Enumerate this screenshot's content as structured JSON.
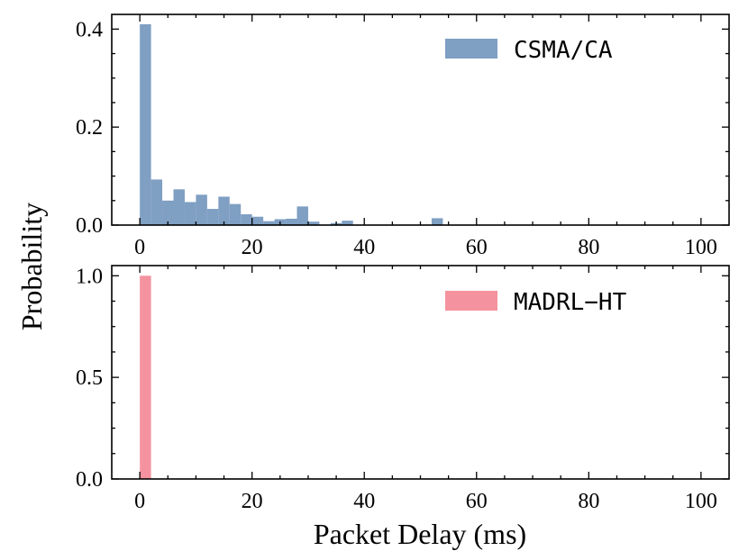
{
  "chart_data": {
    "type": "histogram",
    "shared_xlabel": "Packet Delay (ms)",
    "shared_ylabel": "Probability",
    "xlim": [
      -5,
      105
    ],
    "xticks": [
      0,
      20,
      40,
      60,
      80,
      100
    ],
    "bin_width": 2,
    "panels": [
      {
        "series_name": "CSMA/CA",
        "color": "#7f9fc3",
        "ylim": [
          0,
          0.43
        ],
        "yticks": [
          0.0,
          0.2,
          0.4
        ],
        "ytick_labels": [
          "0.0",
          "0.2",
          "0.4"
        ],
        "bins": [
          {
            "x": 0,
            "value": 0.41
          },
          {
            "x": 2,
            "value": 0.093
          },
          {
            "x": 4,
            "value": 0.05
          },
          {
            "x": 6,
            "value": 0.073
          },
          {
            "x": 8,
            "value": 0.047
          },
          {
            "x": 10,
            "value": 0.062
          },
          {
            "x": 12,
            "value": 0.033
          },
          {
            "x": 14,
            "value": 0.058
          },
          {
            "x": 16,
            "value": 0.043
          },
          {
            "x": 18,
            "value": 0.022
          },
          {
            "x": 20,
            "value": 0.017
          },
          {
            "x": 22,
            "value": 0.008
          },
          {
            "x": 24,
            "value": 0.012
          },
          {
            "x": 26,
            "value": 0.013
          },
          {
            "x": 28,
            "value": 0.038
          },
          {
            "x": 30,
            "value": 0.007
          },
          {
            "x": 34,
            "value": 0.004
          },
          {
            "x": 36,
            "value": 0.009
          },
          {
            "x": 52,
            "value": 0.014
          }
        ]
      },
      {
        "series_name": "MADRL−HT",
        "color": "#f4939f",
        "ylim": [
          0,
          1.05
        ],
        "yticks": [
          0.0,
          0.5,
          1.0
        ],
        "ytick_labels": [
          "0.0",
          "0.5",
          "1.0"
        ],
        "bins": [
          {
            "x": 0,
            "value": 1.0
          }
        ]
      }
    ]
  }
}
